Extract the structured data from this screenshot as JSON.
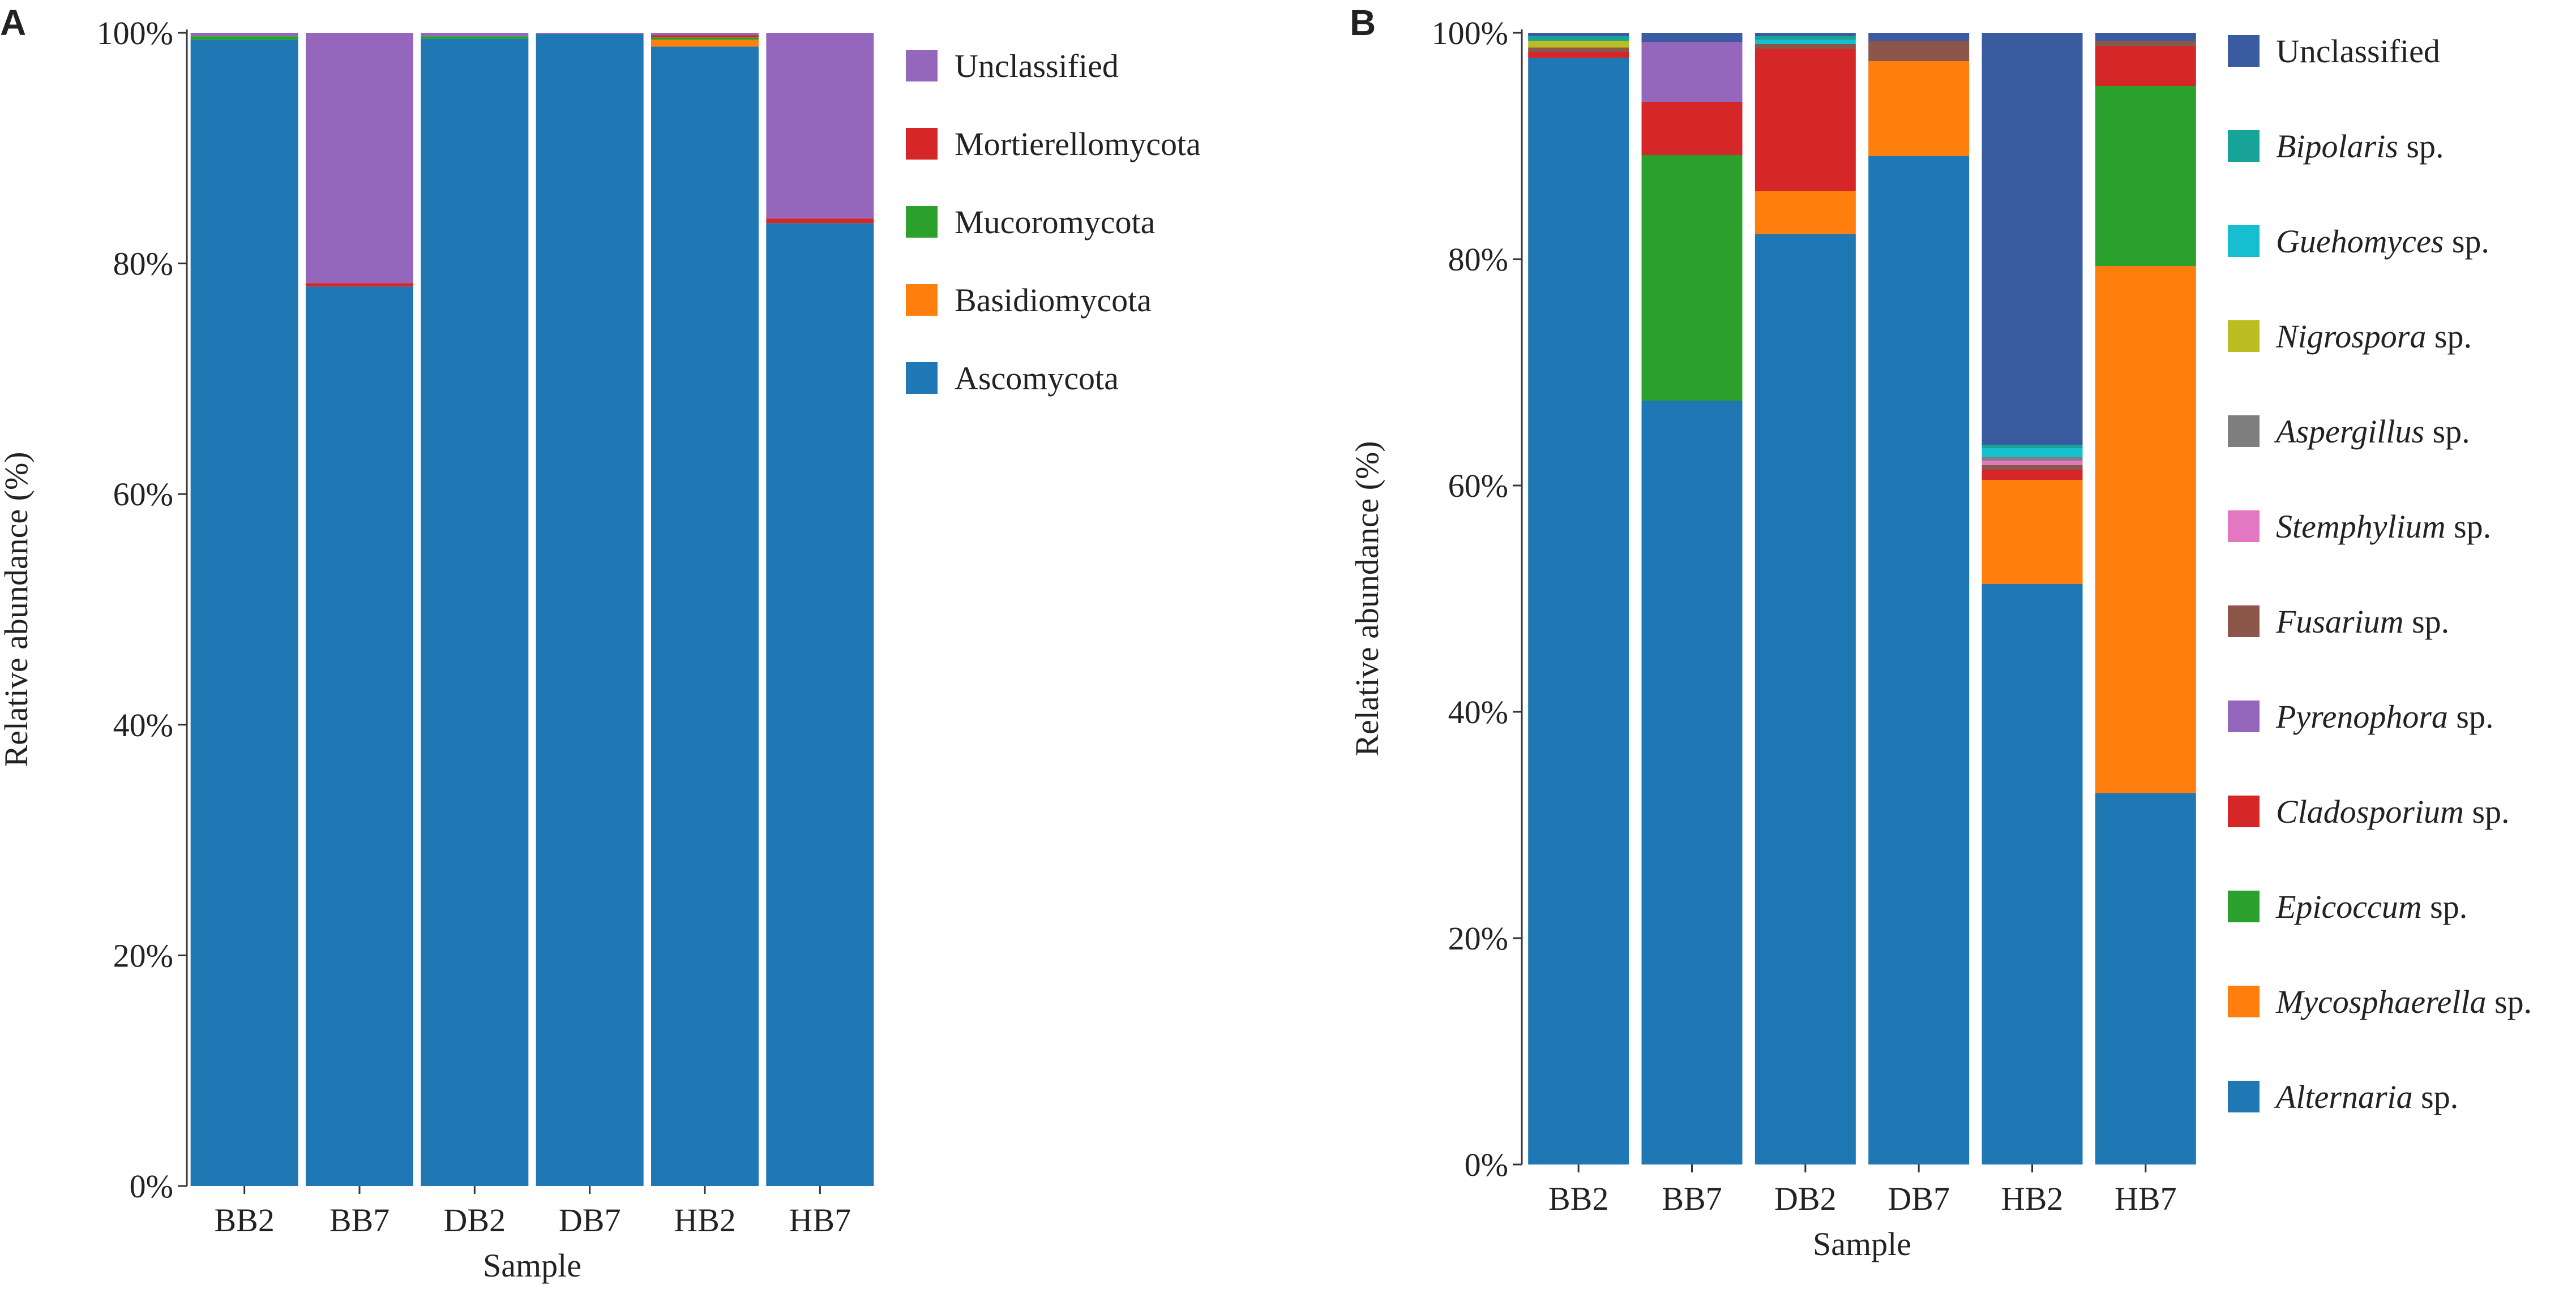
{
  "chart_data": [
    {
      "type": "stacked-bar",
      "panel": "A",
      "xlabel": "Sample",
      "ylabel": "Relative abundance (%)",
      "ylim": [
        0,
        100
      ],
      "yticks": [
        "0%",
        "20%",
        "40%",
        "60%",
        "80%",
        "100%"
      ],
      "categories": [
        "BB2",
        "BB7",
        "DB2",
        "DB7",
        "HB2",
        "HB7"
      ],
      "series": [
        {
          "name": "Ascomycota",
          "color": "#1f77b4",
          "values": [
            99.4,
            78.0,
            99.5,
            99.9,
            98.8,
            83.5
          ]
        },
        {
          "name": "Basidiomycota",
          "color": "#ff7f0e",
          "values": [
            0.0,
            0.0,
            0.0,
            0.0,
            0.6,
            0.0
          ]
        },
        {
          "name": "Mucoromycota",
          "color": "#2ca02c",
          "values": [
            0.3,
            0.0,
            0.2,
            0.0,
            0.2,
            0.0
          ]
        },
        {
          "name": "Mortierellomycota",
          "color": "#d62728",
          "values": [
            0.0,
            0.3,
            0.0,
            0.0,
            0.2,
            0.4
          ]
        },
        {
          "name": "Unclassified",
          "color": "#9467bd",
          "values": [
            0.3,
            21.7,
            0.3,
            0.1,
            0.2,
            16.1
          ]
        }
      ],
      "legend_order": [
        "Unclassified",
        "Mortierellomycota",
        "Mucoromycota",
        "Basidiomycota",
        "Ascomycota"
      ]
    },
    {
      "type": "stacked-bar",
      "panel": "B",
      "xlabel": "Sample",
      "ylabel": "Relative abundance (%)",
      "ylim": [
        0,
        100
      ],
      "yticks": [
        "0%",
        "20%",
        "40%",
        "60%",
        "80%",
        "100%"
      ],
      "categories": [
        "BB2",
        "BB7",
        "DB2",
        "DB7",
        "HB2",
        "HB7"
      ],
      "series": [
        {
          "name": "Alternaria",
          "suffix": " sp.",
          "color": "#1f77b4",
          "values": [
            97.8,
            67.5,
            82.2,
            89.1,
            51.3,
            32.8
          ]
        },
        {
          "name": "Mycosphaerella",
          "suffix": " sp.",
          "color": "#ff7f0e",
          "values": [
            0.0,
            0.0,
            3.8,
            8.4,
            9.2,
            46.6
          ]
        },
        {
          "name": "Epicoccum",
          "suffix": " sp.",
          "color": "#2ca02c",
          "values": [
            0.0,
            21.7,
            0.0,
            0.0,
            0.0,
            15.9
          ]
        },
        {
          "name": "Cladosporium",
          "suffix": " sp.",
          "color": "#d62728",
          "values": [
            0.5,
            4.7,
            12.6,
            0.0,
            0.9,
            3.5
          ]
        },
        {
          "name": "Pyrenophora",
          "suffix": " sp.",
          "color": "#9467bd",
          "values": [
            0.0,
            5.3,
            0.0,
            0.0,
            0.0,
            0.0
          ]
        },
        {
          "name": "Fusarium",
          "suffix": " sp.",
          "color": "#8c564b",
          "values": [
            0.4,
            0.0,
            0.4,
            1.8,
            0.4,
            0.5
          ]
        },
        {
          "name": "Stemphylium",
          "suffix": " sp.",
          "color": "#e377c2",
          "values": [
            0.0,
            0.0,
            0.0,
            0.0,
            0.4,
            0.0
          ]
        },
        {
          "name": "Aspergillus",
          "suffix": " sp.",
          "color": "#7f7f7f",
          "values": [
            0.0,
            0.0,
            0.0,
            0.0,
            0.3,
            0.0
          ]
        },
        {
          "name": "Nigrospora",
          "suffix": " sp.",
          "color": "#bcbd22",
          "values": [
            0.6,
            0.0,
            0.0,
            0.0,
            0.0,
            0.0
          ]
        },
        {
          "name": "Guehomyces",
          "suffix": " sp.",
          "color": "#17becf",
          "values": [
            0.0,
            0.0,
            0.4,
            0.0,
            0.8,
            0.0
          ]
        },
        {
          "name": "Bipolaris",
          "suffix": " sp.",
          "color": "#17a397",
          "values": [
            0.4,
            0.0,
            0.3,
            0.0,
            0.3,
            0.0
          ]
        },
        {
          "name": "Unclassified",
          "suffix": "",
          "color": "#3a5ba0",
          "values": [
            0.3,
            0.8,
            0.3,
            0.7,
            36.4,
            0.7
          ]
        }
      ],
      "legend_order": [
        "Unclassified",
        "Bipolaris",
        "Guehomyces",
        "Nigrospora",
        "Aspergillus",
        "Stemphylium",
        "Fusarium",
        "Pyrenophora",
        "Cladosporium",
        "Epicoccum",
        "Mycosphaerella",
        "Alternaria"
      ]
    }
  ]
}
